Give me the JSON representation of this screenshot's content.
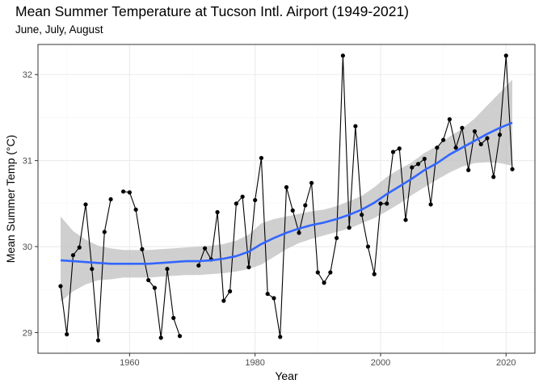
{
  "chart_data": {
    "type": "line",
    "title": "Mean Summer Temperature at Tucson Intl. Airport (1949-2021)",
    "subtitle": "June, July, August",
    "xlabel": "Year",
    "ylabel": "Mean Summer Temp (°C)",
    "xlim": [
      1945.4,
      2024.6
    ],
    "ylim": [
      28.76,
      32.35
    ],
    "x_ticks": [
      1960,
      1980,
      2000,
      2020
    ],
    "y_ticks": [
      29,
      30,
      31,
      32
    ],
    "grid": true,
    "legend": "none",
    "colors": {
      "points": "#000000",
      "line": "#000000",
      "smooth": "#3366FF",
      "ribbon": "#bfbfbf",
      "grid_major": "#ebebeb",
      "grid_minor": "#f5f5f5",
      "panel_border": "#333333"
    },
    "series": [
      {
        "x": [
          1949,
          1950,
          1951,
          1952,
          1953,
          1954,
          1955,
          1956,
          1957,
          1958,
          1959,
          1960,
          1961,
          1962,
          1963,
          1964,
          1965,
          1966,
          1967,
          1968,
          1969,
          1970,
          1971,
          1972,
          1973,
          1974,
          1975,
          1976,
          1977,
          1978,
          1979,
          1980,
          1981,
          1982,
          1983,
          1984,
          1985,
          1986,
          1987,
          1988,
          1989,
          1990,
          1991,
          1992,
          1993,
          1994,
          1995,
          1996,
          1997,
          1998,
          1999,
          2000,
          2001,
          2002,
          2003,
          2004,
          2005,
          2006,
          2007,
          2008,
          2009,
          2010,
          2011,
          2012,
          2013,
          2014,
          2015,
          2016,
          2017,
          2018,
          2019,
          2020,
          2021
        ],
        "y": [
          29.54,
          28.98,
          29.9,
          29.99,
          30.49,
          29.74,
          28.91,
          30.17,
          30.55,
          null,
          30.64,
          30.63,
          30.43,
          29.97,
          29.61,
          29.52,
          28.94,
          29.74,
          29.17,
          28.96,
          null,
          null,
          29.78,
          29.98,
          29.85,
          30.4,
          29.37,
          29.48,
          30.5,
          30.58,
          29.76,
          30.54,
          31.03,
          29.45,
          29.4,
          28.95,
          30.69,
          30.42,
          30.16,
          30.48,
          30.74,
          29.7,
          29.58,
          29.7,
          30.1,
          32.22,
          30.22,
          31.4,
          30.37,
          30.0,
          29.68,
          30.5,
          30.5,
          31.1,
          31.14,
          30.31,
          30.92,
          30.96,
          31.02,
          30.49,
          31.15,
          31.24,
          31.48,
          31.15,
          31.38,
          30.89,
          31.34,
          31.19,
          31.26,
          30.81,
          31.3,
          32.22,
          30.9
        ]
      }
    ],
    "smooth": {
      "x": [
        1949,
        1951,
        1953,
        1955,
        1957,
        1959,
        1961,
        1963,
        1965,
        1967,
        1969,
        1971,
        1973,
        1975,
        1977,
        1979,
        1981,
        1983,
        1985,
        1987,
        1989,
        1991,
        1993,
        1995,
        1997,
        1999,
        2001,
        2003,
        2005,
        2007,
        2009,
        2011,
        2013,
        2015,
        2017,
        2019,
        2021
      ],
      "y": [
        29.84,
        29.83,
        29.82,
        29.81,
        29.8,
        29.8,
        29.8,
        29.8,
        29.81,
        29.82,
        29.83,
        29.83,
        29.84,
        29.86,
        29.89,
        29.94,
        30.03,
        30.1,
        30.16,
        30.21,
        30.25,
        30.28,
        30.32,
        30.37,
        30.43,
        30.51,
        30.61,
        30.7,
        30.79,
        30.89,
        30.97,
        31.07,
        31.15,
        31.23,
        31.31,
        31.38,
        31.44
      ],
      "lower": [
        29.36,
        29.48,
        29.56,
        29.61,
        29.62,
        29.64,
        29.64,
        29.64,
        29.65,
        29.66,
        29.67,
        29.67,
        29.68,
        29.69,
        29.71,
        29.74,
        29.79,
        29.88,
        29.97,
        30.04,
        30.09,
        30.13,
        30.17,
        30.21,
        30.27,
        30.33,
        30.41,
        30.5,
        30.6,
        30.69,
        30.78,
        30.86,
        30.93,
        30.97,
        30.98,
        30.97,
        30.94
      ],
      "upper": [
        30.35,
        30.18,
        30.08,
        30.01,
        29.98,
        29.96,
        29.96,
        29.96,
        29.97,
        29.98,
        29.99,
        30.0,
        30.01,
        30.03,
        30.07,
        30.14,
        30.27,
        30.32,
        30.35,
        30.38,
        30.41,
        30.43,
        30.47,
        30.53,
        30.59,
        30.69,
        30.81,
        30.9,
        30.98,
        31.09,
        31.17,
        31.28,
        31.37,
        31.49,
        31.64,
        31.79,
        31.94
      ]
    }
  }
}
